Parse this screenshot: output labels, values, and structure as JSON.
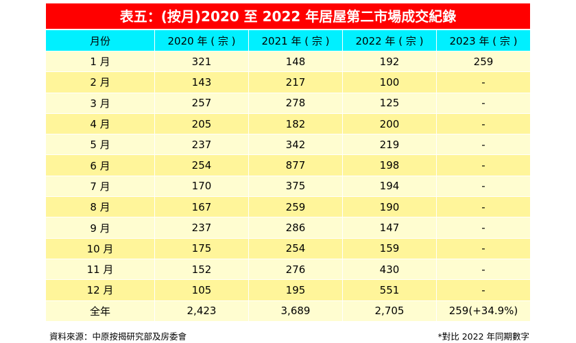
{
  "title": "表五：(按月)2020 至 2022 年居屋第二市場成交紀錄",
  "headers": [
    "月份",
    "2020 年 ( 宗 )",
    "2021 年 ( 宗 )",
    "2022 年 ( 宗 )",
    "2023 年 ( 宗 )"
  ],
  "rows": [
    [
      "1 月",
      "321",
      "148",
      "192",
      "259"
    ],
    [
      "2 月",
      "143",
      "217",
      "100",
      "-"
    ],
    [
      "3 月",
      "257",
      "278",
      "125",
      "-"
    ],
    [
      "4 月",
      "205",
      "182",
      "200",
      "-"
    ],
    [
      "5 月",
      "237",
      "342",
      "219",
      "-"
    ],
    [
      "6 月",
      "254",
      "877",
      "198",
      "-"
    ],
    [
      "7 月",
      "170",
      "375",
      "194",
      "-"
    ],
    [
      "8 月",
      "167",
      "259",
      "190",
      "-"
    ],
    [
      "9 月",
      "237",
      "286",
      "147",
      "-"
    ],
    [
      "10 月",
      "175",
      "254",
      "159",
      "-"
    ],
    [
      "11 月",
      "152",
      "276",
      "430",
      "-"
    ],
    [
      "12 月",
      "105",
      "195",
      "551",
      "-"
    ]
  ],
  "total": [
    "全年",
    "2,423",
    "3,689",
    "2,705",
    "259(+34.9%)"
  ],
  "footer": {
    "source": "資料來源：中原按揭研究部及房委會",
    "note": "*對比 2022 年同期數字"
  },
  "colors": {
    "title_bg": "#ff0000",
    "header_bg": "#00f0ff",
    "row_light": "#fffdd0",
    "row_dark": "#fff59a"
  }
}
